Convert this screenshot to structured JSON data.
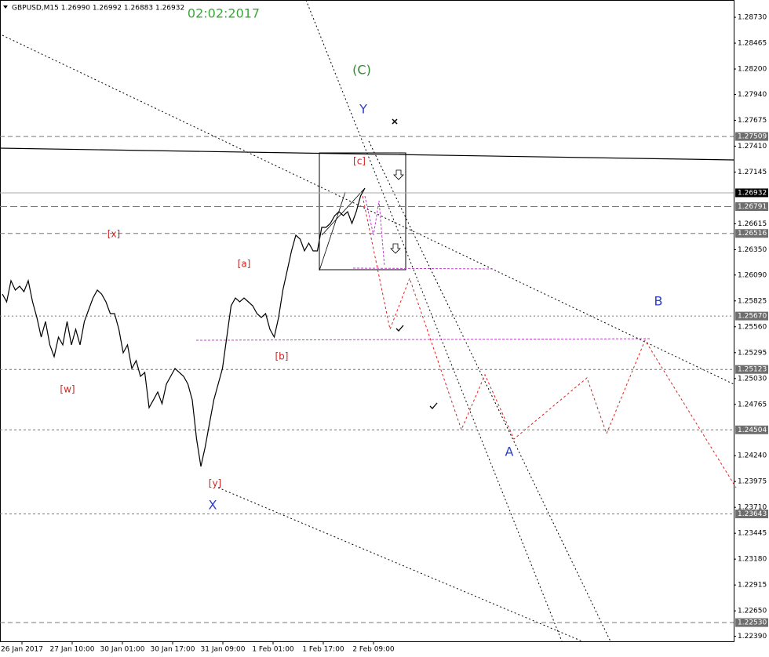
{
  "chart_data": {
    "type": "line",
    "title": "GBPUSD,M15  1.26990 1.26992 1.26883 1.26932",
    "subtitle": "02:02:2017",
    "subtitle_color": "#3aa83a",
    "x_labels": [
      "26 Jan 2017",
      "27 Jan 10:00",
      "30 Jan 01:00",
      "30 Jan 17:00",
      "31 Jan 09:00",
      "1 Feb 01:00",
      "1 Feb 17:00",
      "2 Feb 09:00"
    ],
    "color": "#000000",
    "values": [
      1.25895,
      1.25815,
      1.26032,
      1.25936,
      1.25976,
      1.2592,
      1.26032,
      1.25815,
      1.25655,
      1.25454,
      1.25614,
      1.25374,
      1.25253,
      1.25454,
      1.25374,
      1.25614,
      1.25374,
      1.25534,
      1.25374,
      1.25614,
      1.25735,
      1.25855,
      1.25936,
      1.25895,
      1.25815,
      1.25695,
      1.25695,
      1.25534,
      1.25293,
      1.25374,
      1.25133,
      1.25213,
      1.25052,
      1.25092,
      1.24731,
      1.24811,
      1.24892,
      1.24771,
      1.24972,
      1.25052,
      1.25133,
      1.25092,
      1.25052,
      1.24972,
      1.24811,
      1.2441,
      1.24129,
      1.2433,
      1.24571,
      1.24811,
      1.24972,
      1.25133,
      1.25454,
      1.25775,
      1.25855,
      1.25815,
      1.25855,
      1.25815,
      1.25775,
      1.25695,
      1.25655,
      1.25695,
      1.25534,
      1.25454,
      1.25655,
      1.25936,
      1.26136,
      1.26337,
      1.26498,
      1.26458,
      1.26337,
      1.26417,
      1.26337,
      1.26337,
      1.26578,
      1.26578,
      1.26618,
      1.26698,
      1.26739,
      1.26698,
      1.26739,
      1.26618,
      1.26739,
      1.26899,
      1.2698
    ],
    "ylim": [
      1.22322,
      1.28907
    ],
    "yticks": [
      {
        "value": 1.2873,
        "label": "1.28730"
      },
      {
        "value": 1.28465,
        "label": "1.28465"
      },
      {
        "value": 1.282,
        "label": "1.28200"
      },
      {
        "value": 1.2794,
        "label": "1.27940"
      },
      {
        "value": 1.27675,
        "label": "1.27675"
      },
      {
        "value": 1.2741,
        "label": "1.27410"
      },
      {
        "value": 1.27145,
        "label": "1.27145"
      },
      {
        "value": 1.26615,
        "label": "1.26615"
      },
      {
        "value": 1.2635,
        "label": "1.26350"
      },
      {
        "value": 1.2609,
        "label": "1.26090"
      },
      {
        "value": 1.25825,
        "label": "1.25825"
      },
      {
        "value": 1.2556,
        "label": "1.25560"
      },
      {
        "value": 1.25295,
        "label": "1.25295"
      },
      {
        "value": 1.2503,
        "label": "1.25030"
      },
      {
        "value": 1.24765,
        "label": "1.24765"
      },
      {
        "value": 1.2424,
        "label": "1.24240"
      },
      {
        "value": 1.23975,
        "label": "1.23975"
      },
      {
        "value": 1.2371,
        "label": "1.23710"
      },
      {
        "value": 1.23445,
        "label": "1.23445"
      },
      {
        "value": 1.2318,
        "label": "1.23180"
      },
      {
        "value": 1.22915,
        "label": "1.22915"
      },
      {
        "value": 1.2265,
        "label": "1.22650"
      },
      {
        "value": 1.2239,
        "label": "1.22390"
      }
    ],
    "levels": [
      {
        "value": 1.27509,
        "label": "1.27509"
      },
      {
        "value": 1.26791,
        "label": "1.26791"
      },
      {
        "value": 1.26516,
        "label": "1.26516"
      },
      {
        "value": 1.2567,
        "label": "1.25670"
      },
      {
        "value": 1.25123,
        "label": "1.25123"
      },
      {
        "value": 1.24504,
        "label": "1.24504"
      },
      {
        "value": 1.23643,
        "label": "1.23643"
      },
      {
        "value": 1.2253,
        "label": "1.22530"
      }
    ],
    "current_price": {
      "value": 1.26932,
      "label": "1.26932"
    },
    "annotations": [
      {
        "text": "(C)",
        "color": "#2e8b2e"
      },
      {
        "text": "Y",
        "color": "#2b3fc8"
      },
      {
        "text": "[c]",
        "color": "#d42020"
      },
      {
        "text": "[x]",
        "color": "#d42020"
      },
      {
        "text": "[a]",
        "color": "#d42020"
      },
      {
        "text": "[b]",
        "color": "#d42020"
      },
      {
        "text": "[w]",
        "color": "#d42020"
      },
      {
        "text": "[y]",
        "color": "#d42020"
      },
      {
        "text": "X",
        "color": "#2b3fc8"
      },
      {
        "text": "A",
        "color": "#2b3fc8"
      },
      {
        "text": "B",
        "color": "#2b3fc8"
      }
    ]
  }
}
